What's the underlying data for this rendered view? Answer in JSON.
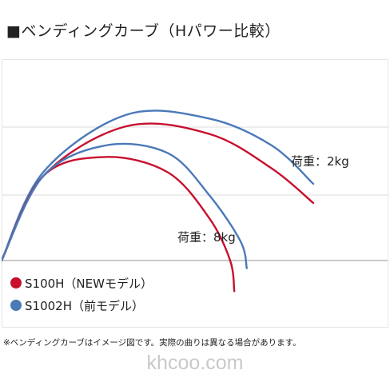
{
  "title": "■ベンディングカーブ（Hパワー比較）",
  "footnote": "※ベンディングカーブはイメージ図です。実際の曲りは異なる場合があります。",
  "watermark": "khcoo.com",
  "chart_data": {
    "type": "line",
    "title": "ベンディングカーブ（Hパワー比較）",
    "grid": true,
    "legend_placement": "bottom-left",
    "annotations": [
      {
        "text": "荷重：2kg",
        "near": "upper curves"
      },
      {
        "text": "荷重：8kg",
        "near": "lower curves"
      }
    ],
    "series": [
      {
        "name": "S100H（NEWモデル）",
        "color": "#c8102e",
        "load": "2kg",
        "points": [
          [
            0,
            0
          ],
          [
            20,
            22
          ],
          [
            60,
            35
          ],
          [
            100,
            33
          ],
          [
            130,
            24
          ],
          [
            150,
            15
          ]
        ]
      },
      {
        "name": "S1002H（前モデル）",
        "color": "#4a79b8",
        "load": "2kg",
        "points": [
          [
            0,
            0
          ],
          [
            20,
            23
          ],
          [
            60,
            38
          ],
          [
            100,
            37
          ],
          [
            130,
            30
          ],
          [
            150,
            20
          ]
        ]
      },
      {
        "name": "S100H（NEWモデル）",
        "color": "#c8102e",
        "load": "8kg",
        "points": [
          [
            0,
            0
          ],
          [
            20,
            22
          ],
          [
            50,
            27
          ],
          [
            80,
            23
          ],
          [
            100,
            11
          ],
          [
            110,
            0
          ],
          [
            112,
            -8
          ]
        ]
      },
      {
        "name": "S1002H（前モデル）",
        "color": "#4a79b8",
        "load": "8kg",
        "points": [
          [
            0,
            0
          ],
          [
            20,
            22
          ],
          [
            50,
            30
          ],
          [
            80,
            28
          ],
          [
            100,
            17
          ],
          [
            115,
            5
          ],
          [
            118,
            -2
          ]
        ]
      }
    ],
    "legend": [
      {
        "label": "S100H（NEWモデル）",
        "color": "#c8102e"
      },
      {
        "label": "S1002H（前モデル）",
        "color": "#4a79b8"
      }
    ]
  }
}
